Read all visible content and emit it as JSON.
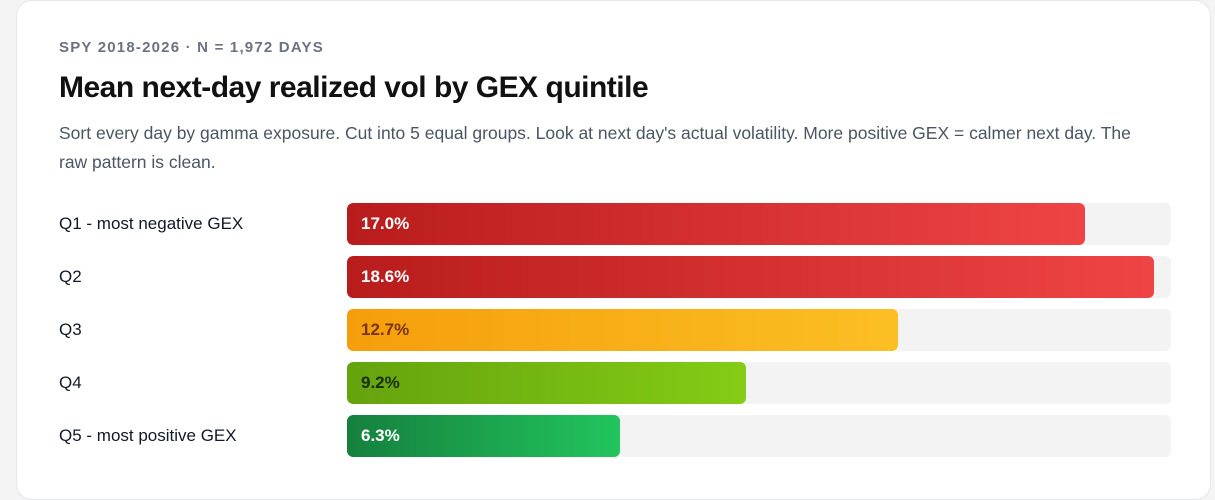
{
  "header": {
    "eyebrow": "SPY 2018-2026 · N = 1,972 DAYS",
    "title": "Mean next-day realized vol by GEX quintile",
    "subtitle": "Sort every day by gamma exposure. Cut into 5 equal groups. Look at next day's actual volatility. More positive GEX = calmer next day. The raw pattern is clean."
  },
  "chart_data": {
    "type": "bar",
    "orientation": "horizontal",
    "categories": [
      "Q1 - most negative GEX",
      "Q2",
      "Q3",
      "Q4",
      "Q5 - most positive GEX"
    ],
    "values": [
      17.0,
      18.6,
      12.7,
      9.2,
      6.3
    ],
    "value_labels": [
      "17.0%",
      "18.6%",
      "12.7%",
      "9.2%",
      "6.3%"
    ],
    "unit": "%",
    "xlim": [
      0,
      18.6
    ],
    "colors": [
      {
        "from": "#b91c1c",
        "to": "#ef4444",
        "label": "#ffffff"
      },
      {
        "from": "#b91c1c",
        "to": "#ef4444",
        "label": "#ffffff"
      },
      {
        "from": "#f59e0b",
        "to": "#fbbf24",
        "label": "#78350f"
      },
      {
        "from": "#65a30d",
        "to": "#84cc16",
        "label": "#1a2e05"
      },
      {
        "from": "#15803d",
        "to": "#22c55e",
        "label": "#ffffff"
      }
    ],
    "grid": false,
    "legend": "none"
  }
}
